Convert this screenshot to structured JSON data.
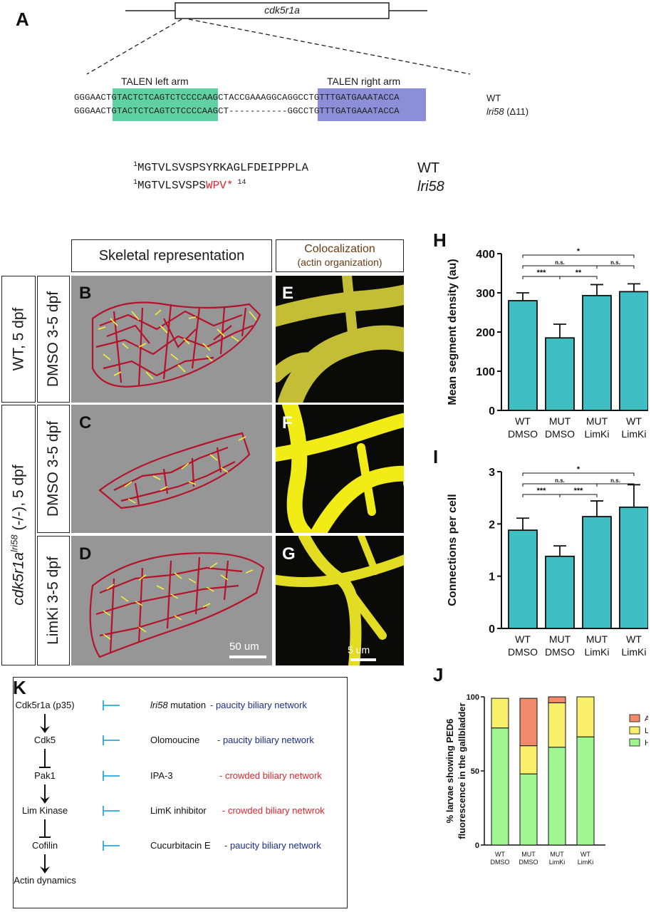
{
  "panel_a": {
    "letter": "A",
    "gene": "cdk5r1a",
    "talen_left": "TALEN left arm",
    "talen_right": "TALEN right arm",
    "wt_seq_pre": "GGGAAC",
    "wt_seq_left": "TGTACTCTCAGTCTCC",
    "wt_seq_mid": "CCAAGCTACCGAAAGG",
    "wt_seq_right": "CAGGCCTGTTTGATGA",
    "wt_seq_post": "AATACCA",
    "mut_seq_pre": "GGGAAC",
    "mut_seq_left": "TGTACTCTCAGTCTCC",
    "mut_seq_mid": "CCAAGCT-----------",
    "mut_seq_right": "GGCCTGTTTGATGA",
    "mut_seq_post": "AATACCA",
    "wt_label": "WT",
    "mut_label": "lri58",
    "mut_delta": "(Δ11)",
    "prot_wt_num": "1",
    "prot_wt": "MGTVLSVSPSYRKAGLFDEIPPPLA",
    "prot_mut_num": "1",
    "prot_mut_black": "MGTVLSVSPS",
    "prot_mut_red": "WPV*",
    "prot_mut_end": "14",
    "prot_wt_label": "WT",
    "prot_mut_label": "lri58"
  },
  "colors": {
    "talen_left": "#5fd1a3",
    "talen_right": "#8c8fd8",
    "teal": "#3fbfc4",
    "red": "#e0262b",
    "blue": "#1a2d8c",
    "inhib": "#29a9d8"
  },
  "images": {
    "header_skeletal": "Skeletal representation",
    "header_coloc_1": "Colocalization",
    "header_coloc_2": "(actin organization)",
    "row_wt": "WT, 5 dpf",
    "row_mut_gene": "cdk5r1a",
    "row_mut_sup": "lri58",
    "row_mut_rest": " (-/-), 5 dpf",
    "row_b": "DMSO 3-5 dpf",
    "row_c": "DMSO 3-5 dpf",
    "row_d": "LimKi 3-5 dpf",
    "letters": [
      "B",
      "C",
      "D",
      "E",
      "F",
      "G"
    ],
    "scale_big": "50 um",
    "scale_small": "5 um"
  },
  "panel_h_letter": "H",
  "panel_i_letter": "I",
  "panel_j_letter": "J",
  "panel_k": {
    "letter": "K",
    "pathway": [
      "Cdk5r1a (p35)",
      "Cdk5",
      "Pak1",
      "Lim Kinase",
      "Cofilin",
      "Actin dynamics"
    ],
    "inhibitors": [
      {
        "name": "lri58",
        "name_suffix": " mutation",
        "effect": "- paucity biliary network",
        "color": "blue"
      },
      {
        "name": "Olomoucine",
        "name_suffix": "",
        "effect": "- paucity biliary network",
        "color": "blue"
      },
      {
        "name": "IPA-3",
        "name_suffix": "",
        "effect": "- crowded biliary network",
        "color": "red"
      },
      {
        "name": "LimK inhibitor",
        "name_suffix": "",
        "effect": "- crowded biliary netwrok",
        "color": "red"
      },
      {
        "name": "Cucurbitacin E",
        "name_suffix": "",
        "effect": "- paucity biliary network",
        "color": "blue"
      }
    ]
  },
  "chart_data": [
    {
      "type": "bar",
      "panel": "H",
      "ylabel": "Mean segment density (au)",
      "categories": [
        [
          "WT",
          "DMSO"
        ],
        [
          "MUT",
          "DMSO"
        ],
        [
          "MUT",
          "LimKi"
        ],
        [
          "WT",
          "LimKi"
        ]
      ],
      "values": [
        280,
        185,
        293,
        303
      ],
      "errors": [
        20,
        35,
        28,
        20
      ],
      "ylim": [
        0,
        400
      ],
      "yticks": [
        0,
        100,
        200,
        300,
        400
      ],
      "significance": [
        {
          "from": 0,
          "to": 3,
          "label": "*"
        },
        {
          "from": 0,
          "to": 2,
          "label": "n.s."
        },
        {
          "from": 0,
          "to": 1,
          "label": "***"
        },
        {
          "from": 1,
          "to": 2,
          "label": "**"
        },
        {
          "from": 2,
          "to": 3,
          "label": "n.s."
        }
      ]
    },
    {
      "type": "bar",
      "panel": "I",
      "ylabel": "Connections per cell",
      "categories": [
        [
          "WT",
          "DMSO"
        ],
        [
          "MUT",
          "DMSO"
        ],
        [
          "MUT",
          "LimKi"
        ],
        [
          "WT",
          "LimKi"
        ]
      ],
      "values": [
        1.88,
        1.38,
        2.14,
        2.32
      ],
      "errors": [
        0.23,
        0.2,
        0.3,
        0.43
      ],
      "ylim": [
        0,
        3
      ],
      "yticks": [
        0,
        1,
        2,
        3
      ],
      "significance": [
        {
          "from": 0,
          "to": 3,
          "label": "*"
        },
        {
          "from": 0,
          "to": 2,
          "label": "n.s."
        },
        {
          "from": 0,
          "to": 1,
          "label": "***"
        },
        {
          "from": 1,
          "to": 2,
          "label": "***"
        },
        {
          "from": 2,
          "to": 3,
          "label": "n.s."
        }
      ]
    },
    {
      "type": "bar",
      "stacked": true,
      "panel": "J",
      "ylabel_1": "% larvae showing PED6",
      "ylabel_2": "fluorescence in the gallbladder",
      "categories": [
        [
          "WT",
          "DMSO"
        ],
        [
          "MUT",
          "DMSO"
        ],
        [
          "MUT",
          "LimKi"
        ],
        [
          "WT",
          "LimKi"
        ]
      ],
      "series": [
        {
          "name": "High",
          "values": [
            79,
            48,
            66,
            73
          ],
          "color": "#9ff58f"
        },
        {
          "name": "Low",
          "values": [
            20,
            19,
            30,
            27
          ],
          "color": "#f8ef6a"
        },
        {
          "name": "Absent",
          "values": [
            0,
            32,
            4,
            0
          ],
          "color": "#f28b6c"
        }
      ],
      "ylim": [
        0,
        100
      ],
      "yticks": [
        0,
        50,
        100
      ],
      "legend": "right"
    }
  ]
}
